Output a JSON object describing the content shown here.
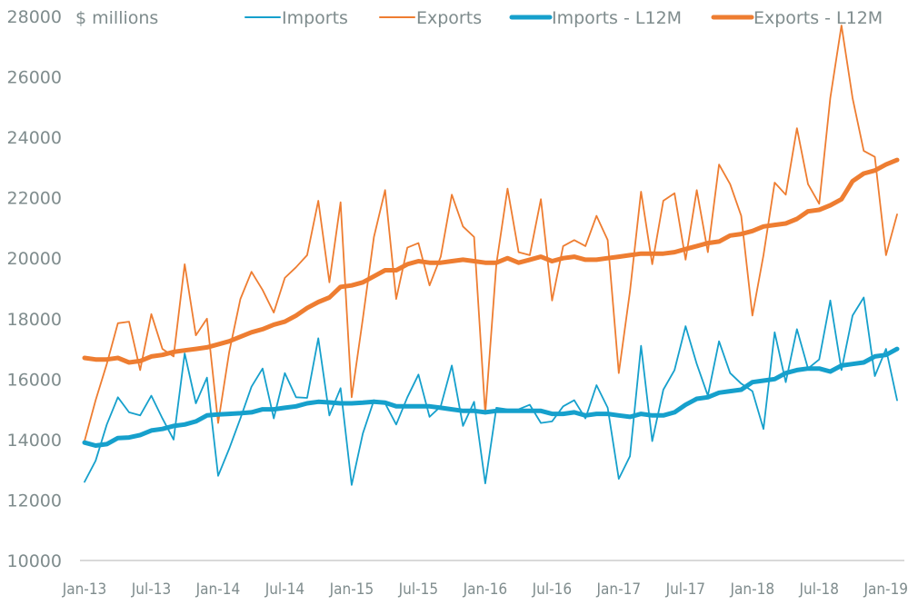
{
  "chart_data": {
    "type": "line",
    "title": "",
    "ylabel": "$ millions",
    "xlabel": "",
    "ylim": [
      10000,
      28000
    ],
    "yticks": [
      10000,
      12000,
      14000,
      16000,
      18000,
      20000,
      22000,
      24000,
      26000,
      28000
    ],
    "xtick_labels": [
      "Jan-13",
      "Jul-13",
      "Jan-14",
      "Jul-14",
      "Jan-15",
      "Jul-15",
      "Jan-16",
      "Jul-16",
      "Jan-17",
      "Jul-17",
      "Jan-18",
      "Jul-18",
      "Jan-19"
    ],
    "xtick_every": 6,
    "grid": false,
    "legend_position": "top",
    "x_start": "Jan-13",
    "x_end": "Jan-19",
    "series": [
      {
        "name": "Imports",
        "color": "#16a0cc",
        "style": "thin",
        "values": [
          12600,
          13300,
          14500,
          15400,
          14900,
          14800,
          15450,
          14700,
          14000,
          16850,
          15200,
          16050,
          12800,
          13700,
          14700,
          15750,
          16350,
          14700,
          16200,
          15400,
          15380,
          17350,
          14800,
          15700,
          12500,
          14200,
          15300,
          15200,
          14500,
          15400,
          16150,
          14750,
          15100,
          16450,
          14450,
          15250,
          12550,
          15050,
          15000,
          15000,
          15150,
          14550,
          14600,
          15100,
          15300,
          14700,
          15800,
          15050,
          12700,
          13450,
          17100,
          13950,
          15650,
          16300,
          17750,
          16500,
          15450,
          17250,
          16200,
          15850,
          15600,
          14350,
          17550,
          15900,
          17650,
          16350,
          16650,
          18600,
          16300,
          18100,
          18700,
          16100,
          17000,
          15300
        ]
      },
      {
        "name": "Exports",
        "color": "#ee7d31",
        "style": "thin",
        "values": [
          13950,
          15300,
          16500,
          17850,
          17900,
          16300,
          18150,
          17000,
          16750,
          19800,
          17450,
          18000,
          14550,
          16900,
          18650,
          19550,
          18950,
          18200,
          19350,
          19700,
          20100,
          21900,
          19200,
          21850,
          15400,
          18000,
          20700,
          22250,
          18650,
          20350,
          20500,
          19100,
          20050,
          22100,
          21050,
          20700,
          14850,
          19800,
          22300,
          20200,
          20100,
          21950,
          18600,
          20400,
          20600,
          20400,
          21400,
          20600,
          16200,
          18900,
          22200,
          19800,
          21900,
          22150,
          19950,
          22250,
          20200,
          23100,
          22450,
          21400,
          18100,
          20100,
          22500,
          22100,
          24300,
          22450,
          21800,
          25300,
          27700,
          25300,
          23550,
          23350,
          20100,
          21450
        ]
      },
      {
        "name": "Imports - L12M",
        "color": "#16a0cc",
        "style": "thick",
        "values": [
          13900,
          13800,
          13850,
          14050,
          14070,
          14150,
          14300,
          14350,
          14450,
          14500,
          14600,
          14800,
          14830,
          14850,
          14870,
          14900,
          15000,
          15000,
          15050,
          15100,
          15200,
          15250,
          15230,
          15200,
          15200,
          15220,
          15250,
          15220,
          15100,
          15100,
          15100,
          15100,
          15050,
          15000,
          14950,
          14950,
          14900,
          14950,
          14950,
          14950,
          14950,
          14950,
          14850,
          14850,
          14900,
          14800,
          14850,
          14850,
          14800,
          14750,
          14850,
          14800,
          14800,
          14900,
          15150,
          15350,
          15400,
          15550,
          15600,
          15650,
          15900,
          15950,
          16000,
          16200,
          16300,
          16350,
          16350,
          16250,
          16450,
          16500,
          16550,
          16750,
          16800,
          17000
        ]
      },
      {
        "name": "Exports - L12M",
        "color": "#ee7d31",
        "style": "thick",
        "values": [
          16700,
          16650,
          16650,
          16700,
          16550,
          16600,
          16750,
          16800,
          16900,
          16950,
          17000,
          17050,
          17150,
          17250,
          17400,
          17550,
          17650,
          17800,
          17900,
          18100,
          18350,
          18550,
          18700,
          19050,
          19100,
          19200,
          19400,
          19600,
          19600,
          19800,
          19900,
          19850,
          19850,
          19900,
          19950,
          19900,
          19850,
          19850,
          20000,
          19850,
          19950,
          20050,
          19900,
          20000,
          20050,
          19950,
          19950,
          20000,
          20050,
          20100,
          20150,
          20150,
          20150,
          20200,
          20300,
          20400,
          20500,
          20550,
          20750,
          20800,
          20900,
          21050,
          21100,
          21150,
          21300,
          21550,
          21600,
          21750,
          21950,
          22550,
          22800,
          22900,
          23100,
          23250
        ]
      }
    ]
  }
}
